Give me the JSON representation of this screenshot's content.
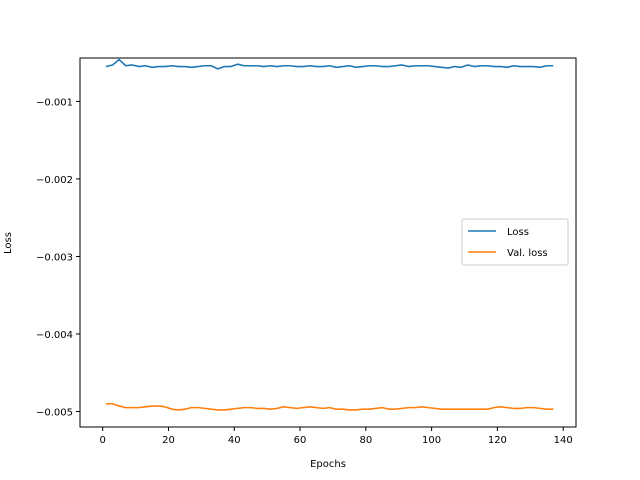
{
  "chart_data": {
    "type": "line",
    "title": "",
    "xlabel": "Epochs",
    "ylabel": "Loss",
    "xlim": [
      -6.9,
      143.9
    ],
    "ylim": [
      -0.0052,
      -0.00044
    ],
    "xticks": [
      0,
      20,
      40,
      60,
      80,
      100,
      120,
      140
    ],
    "yticks": [
      -0.005,
      -0.004,
      -0.003,
      -0.002,
      -0.001
    ],
    "ytick_labels": [
      "−0.005",
      "−0.004",
      "−0.003",
      "−0.002",
      "−0.001"
    ],
    "grid": false,
    "legend_position": "center-right",
    "series": [
      {
        "name": "Loss",
        "color": "#1f77b4",
        "x": [
          1,
          3,
          5,
          7,
          9,
          11,
          13,
          15,
          17,
          19,
          21,
          23,
          25,
          27,
          29,
          31,
          33,
          35,
          37,
          39,
          41,
          43,
          45,
          47,
          49,
          51,
          53,
          55,
          57,
          59,
          61,
          63,
          65,
          67,
          69,
          71,
          73,
          75,
          77,
          79,
          81,
          83,
          85,
          87,
          89,
          91,
          93,
          95,
          97,
          99,
          101,
          103,
          105,
          107,
          109,
          111,
          113,
          115,
          117,
          119,
          121,
          123,
          125,
          127,
          129,
          131,
          133,
          135,
          137
        ],
        "values": [
          -0.00055,
          -0.00053,
          -0.00046,
          -0.00054,
          -0.00053,
          -0.00055,
          -0.00054,
          -0.00056,
          -0.00055,
          -0.00055,
          -0.00054,
          -0.00055,
          -0.00055,
          -0.00056,
          -0.00055,
          -0.00054,
          -0.00054,
          -0.00058,
          -0.00055,
          -0.00055,
          -0.00052,
          -0.00054,
          -0.00054,
          -0.00054,
          -0.00055,
          -0.00054,
          -0.00055,
          -0.00054,
          -0.00054,
          -0.00055,
          -0.00055,
          -0.00054,
          -0.00055,
          -0.00055,
          -0.00054,
          -0.00056,
          -0.00055,
          -0.00054,
          -0.00056,
          -0.00055,
          -0.00054,
          -0.00054,
          -0.00055,
          -0.00055,
          -0.00054,
          -0.00053,
          -0.00055,
          -0.00054,
          -0.00054,
          -0.00054,
          -0.00055,
          -0.00056,
          -0.00057,
          -0.00055,
          -0.00056,
          -0.00053,
          -0.00055,
          -0.00054,
          -0.00054,
          -0.00055,
          -0.00055,
          -0.00056,
          -0.00054,
          -0.00055,
          -0.00055,
          -0.00055,
          -0.00056,
          -0.00054,
          -0.00054
        ]
      },
      {
        "name": "Val. loss",
        "color": "#ff7f0e",
        "x": [
          1,
          3,
          5,
          7,
          9,
          11,
          13,
          15,
          17,
          19,
          21,
          23,
          25,
          27,
          29,
          31,
          33,
          35,
          37,
          39,
          41,
          43,
          45,
          47,
          49,
          51,
          53,
          55,
          57,
          59,
          61,
          63,
          65,
          67,
          69,
          71,
          73,
          75,
          77,
          79,
          81,
          83,
          85,
          87,
          89,
          91,
          93,
          95,
          97,
          99,
          101,
          103,
          105,
          107,
          109,
          111,
          113,
          115,
          117,
          119,
          121,
          123,
          125,
          127,
          129,
          131,
          133,
          135,
          137
        ],
        "values": [
          -0.0049,
          -0.0049,
          -0.00493,
          -0.00495,
          -0.00495,
          -0.00495,
          -0.00494,
          -0.00493,
          -0.00493,
          -0.00494,
          -0.00497,
          -0.00498,
          -0.00497,
          -0.00495,
          -0.00495,
          -0.00496,
          -0.00497,
          -0.00498,
          -0.00498,
          -0.00497,
          -0.00496,
          -0.00495,
          -0.00495,
          -0.00496,
          -0.00496,
          -0.00497,
          -0.00496,
          -0.00494,
          -0.00495,
          -0.00496,
          -0.00495,
          -0.00494,
          -0.00495,
          -0.00496,
          -0.00495,
          -0.00497,
          -0.00497,
          -0.00498,
          -0.00498,
          -0.00497,
          -0.00497,
          -0.00496,
          -0.00495,
          -0.00497,
          -0.00497,
          -0.00496,
          -0.00495,
          -0.00495,
          -0.00494,
          -0.00495,
          -0.00496,
          -0.00497,
          -0.00497,
          -0.00497,
          -0.00497,
          -0.00497,
          -0.00497,
          -0.00497,
          -0.00497,
          -0.00495,
          -0.00494,
          -0.00495,
          -0.00496,
          -0.00496,
          -0.00495,
          -0.00495,
          -0.00496,
          -0.00497,
          -0.00497
        ]
      }
    ]
  }
}
